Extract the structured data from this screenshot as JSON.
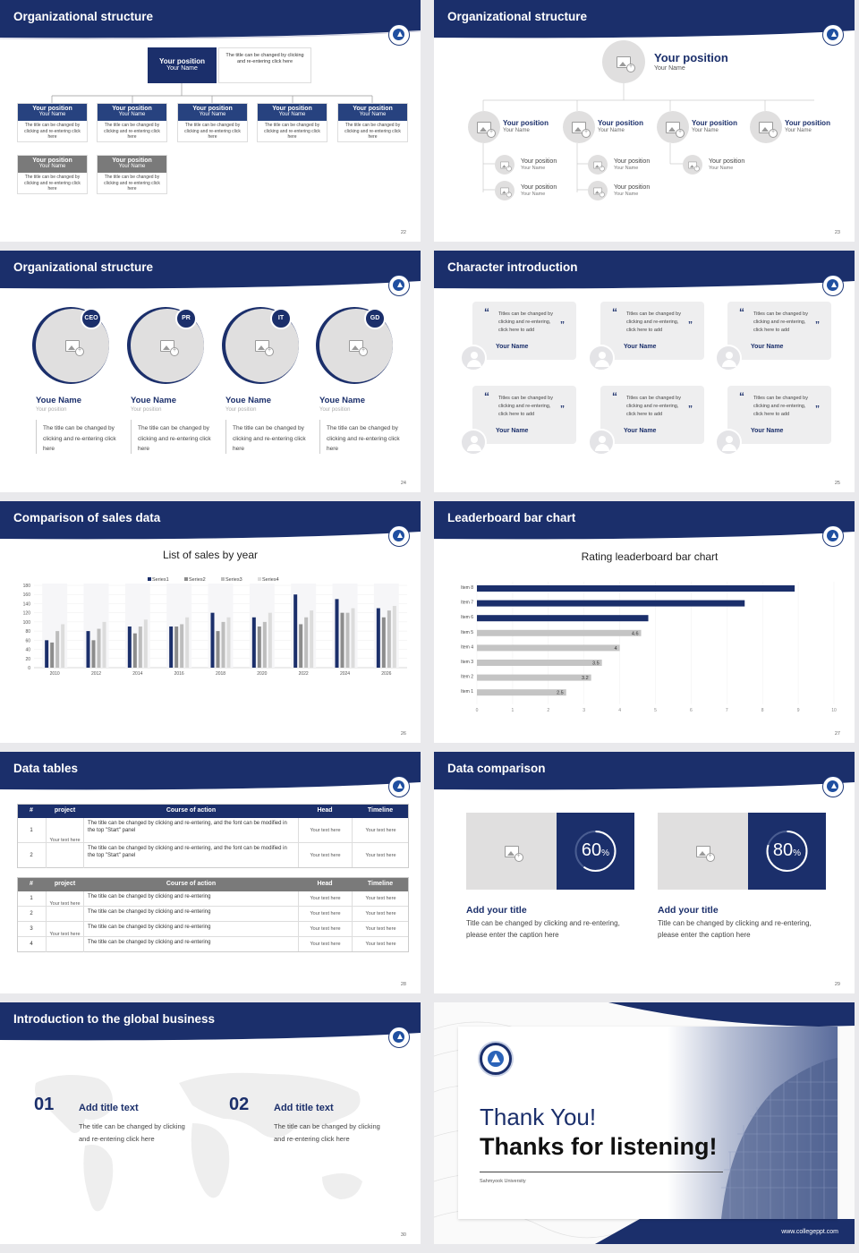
{
  "s1": {
    "title": "Organizational structure",
    "page": "22",
    "top": {
      "pos": "Your position",
      "name": "Your Name",
      "desc": "The title can be changed by clicking and re-entering click here"
    },
    "boxes": [
      {
        "pos": "Your position",
        "name": "Your Name",
        "desc": "The title can be changed by clicking and re-entering click here"
      },
      {
        "pos": "Your position",
        "name": "Your Name",
        "desc": "The title can be changed by clicking and re-entering click here"
      },
      {
        "pos": "Your position",
        "name": "Your Name",
        "desc": "The title can be changed by clicking and re-entering click here"
      },
      {
        "pos": "Your position",
        "name": "Your Name",
        "desc": "The title can be changed by clicking and re-entering click here"
      },
      {
        "pos": "Your position",
        "name": "Your Name",
        "desc": "The title can be changed by clicking and re-entering click here"
      }
    ],
    "grey": [
      {
        "pos": "Your position",
        "name": "Your Name",
        "desc": "The title can be changed by clicking and re-entering click here"
      },
      {
        "pos": "Your position",
        "name": "Your Name",
        "desc": "The title can be changed by clicking and re-entering click here"
      }
    ]
  },
  "s2": {
    "title": "Organizational structure",
    "page": "23",
    "top": {
      "pos": "Your position",
      "name": "Your Name"
    },
    "row": [
      {
        "pos": "Your position",
        "name": "Your Name"
      },
      {
        "pos": "Your position",
        "name": "Your Name"
      },
      {
        "pos": "Your position",
        "name": "Your Name"
      },
      {
        "pos": "Your position",
        "name": "Your Name"
      }
    ],
    "sub": [
      {
        "pos": "Your position",
        "name": "Your Name"
      },
      {
        "pos": "Your position",
        "name": "Your Name"
      },
      {
        "pos": "Your position",
        "name": "Your Name"
      },
      {
        "pos": "Your position",
        "name": "Your Name"
      },
      {
        "pos": "Your position",
        "name": "Your Name"
      }
    ]
  },
  "s3": {
    "title": "Organizational structure",
    "page": "24",
    "people": [
      {
        "badge": "CEO",
        "name": "Youe Name",
        "pos": "Your position",
        "desc": "The title can be changed by clicking and re-entering click here"
      },
      {
        "badge": "PR",
        "name": "Youe Name",
        "pos": "Your position",
        "desc": "The title can be changed by clicking and re-entering click here"
      },
      {
        "badge": "IT",
        "name": "Youe Name",
        "pos": "Your position",
        "desc": "The title can be changed by clicking and re-entering click here"
      },
      {
        "badge": "GD",
        "name": "Youe Name",
        "pos": "Your position",
        "desc": "The title can be changed by clicking and re-entering click here"
      }
    ]
  },
  "s4": {
    "title": "Character introduction",
    "page": "25",
    "quote": "Titles can be changed by clicking and re-entering, click here to add",
    "name": "Your Name"
  },
  "s5": {
    "title": "Comparison of sales data",
    "page": "26"
  },
  "s6": {
    "title": "Leaderboard bar chart",
    "page": "27"
  },
  "s7": {
    "title": "Data tables",
    "page": "28",
    "t1": {
      "head": [
        "#",
        "project",
        "Course of action",
        "Head",
        "Timeline"
      ],
      "rows": [
        {
          "n": "1",
          "c": "The title can be changed by clicking and re-entering, and the font can be modified in the top \"Start\" panel",
          "h": "Your text here",
          "t": "Your text here"
        },
        {
          "n": "2",
          "c": "The title can be changed by clicking and re-entering, and the font can be modified in the top \"Start\" panel",
          "h": "Your text here",
          "t": "Your text here"
        }
      ],
      "project": "Your text here"
    },
    "t2": {
      "head": [
        "#",
        "project",
        "Course of action",
        "Head",
        "Timeline"
      ],
      "rows": [
        {
          "n": "1",
          "c": "The title can be changed by clicking and re-entering",
          "h": "Your text here",
          "t": "Your text here"
        },
        {
          "n": "2",
          "c": "The title can be changed by clicking and re-entering",
          "h": "Your text here",
          "t": "Your text here"
        },
        {
          "n": "3",
          "c": "The title can be changed by clicking and re-entering",
          "h": "Your text here",
          "t": "Your text here"
        },
        {
          "n": "4",
          "c": "The title can be changed by clicking and re-entering",
          "h": "Your text here",
          "t": "Your text here"
        }
      ],
      "project1": "Your text here",
      "project2": "Your text here"
    }
  },
  "s8": {
    "title": "Data comparison",
    "page": "29",
    "cards": [
      {
        "pct": "60",
        "unit": "%",
        "value": 60,
        "title": "Add your title",
        "desc": "Title can be changed by clicking and re-entering, please enter the caption here"
      },
      {
        "pct": "80",
        "unit": "%",
        "value": 80,
        "title": "Add your title",
        "desc": "Title can be changed by clicking and re-entering, please enter the caption here"
      }
    ]
  },
  "s9": {
    "title": "Introduction to the global business",
    "page": "30",
    "items": [
      {
        "num": "01",
        "title": "Add title text",
        "desc": "The title can be changed by clicking and re-entering click here"
      },
      {
        "num": "02",
        "title": "Add title text",
        "desc": "The title can be changed by clicking and re-entering click here"
      }
    ]
  },
  "s10": {
    "line1": "Thank You!",
    "line2": "Thanks for listening!",
    "university": "Sahmyook University",
    "url": "www.collegeppt.com"
  },
  "chart_data": [
    {
      "type": "bar",
      "title": "List of sales by year",
      "categories": [
        "2010",
        "2012",
        "2014",
        "2016",
        "2018",
        "2020",
        "2022",
        "2024",
        "2026"
      ],
      "ylim": [
        0,
        180
      ],
      "yticks": [
        0,
        20,
        40,
        60,
        80,
        100,
        120,
        140,
        160,
        180
      ],
      "series": [
        {
          "name": "Series1",
          "color": "#1b2f6b",
          "values": [
            60,
            80,
            90,
            90,
            120,
            110,
            160,
            150,
            130
          ]
        },
        {
          "name": "Series2",
          "color": "#8c8c8c",
          "values": [
            55,
            60,
            75,
            90,
            80,
            90,
            95,
            120,
            110
          ]
        },
        {
          "name": "Series3",
          "color": "#bdbdbd",
          "values": [
            80,
            85,
            90,
            95,
            100,
            100,
            110,
            120,
            125
          ]
        },
        {
          "name": "Series4",
          "color": "#dcdcdc",
          "values": [
            95,
            100,
            105,
            110,
            110,
            120,
            125,
            130,
            135
          ]
        }
      ],
      "legend": "top"
    },
    {
      "type": "bar",
      "orientation": "horizontal",
      "title": "Rating leaderboard bar chart",
      "categories": [
        "Item 8",
        "Item 7",
        "Item 6",
        "Item 5",
        "Item 4",
        "Item 3",
        "Item 2",
        "Item 1"
      ],
      "values": [
        8.9,
        7.5,
        4.8,
        4.6,
        4,
        3.5,
        3.2,
        2.5
      ],
      "xlim": [
        0,
        10
      ],
      "xticks": [
        0,
        1,
        2,
        3,
        4,
        5,
        6,
        7,
        8,
        9,
        10
      ],
      "value_labels": [
        "",
        "",
        "",
        "4.6",
        "4",
        "3.5",
        "3.2",
        "2.5"
      ],
      "highlight_count": 3,
      "colors": {
        "top": "#1b2f6b",
        "rest": "#c4c4c4"
      }
    }
  ]
}
